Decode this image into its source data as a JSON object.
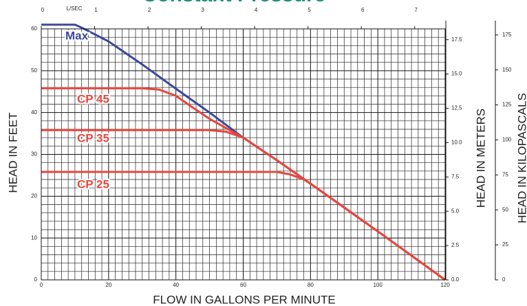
{
  "chart_data": {
    "type": "line",
    "title": "Constant Pressure",
    "xlabel": "FLOW IN GALLONS PER MINUTE",
    "ylabel": "HEAD IN FEET",
    "y2label": "HEAD IN METERS",
    "y3label": "HEAD IN KILOPASCALS",
    "x2label": "L/SEC",
    "xlim": [
      0,
      120
    ],
    "xticks": [
      0,
      20,
      40,
      60,
      80,
      100,
      120
    ],
    "ylim": [
      0,
      60
    ],
    "yticks": [
      0,
      10,
      20,
      30,
      40,
      50,
      60
    ],
    "x2lim": [
      0,
      7.571
    ],
    "x2ticks": [
      0,
      1,
      2,
      3,
      4,
      5,
      6,
      7
    ],
    "y2lim": [
      0,
      18.288
    ],
    "y2ticks": [
      {
        "value": 0,
        "label": "0.0"
      },
      2.5,
      {
        "value": 5,
        "label": "5.0"
      },
      7.5,
      {
        "value": 10,
        "label": "10.0"
      },
      12.5,
      {
        "value": 15,
        "label": "15.0"
      },
      17.5
    ],
    "y3lim": [
      0,
      179.3
    ],
    "y3ticks": [
      0,
      25,
      50,
      75,
      100,
      125,
      150,
      175
    ],
    "grid": true,
    "series": [
      {
        "name": "Max",
        "color": "#3a479b",
        "x": [
          0,
          10,
          12,
          20,
          30,
          40,
          50,
          60,
          70,
          80,
          90,
          100,
          110,
          120
        ],
        "values": [
          61,
          61,
          60.3,
          57,
          51.5,
          45.7,
          40,
          34,
          28.6,
          23,
          17.3,
          11.6,
          5.8,
          0
        ]
      },
      {
        "name": "CP 45",
        "color": "#e8453c",
        "x": [
          0,
          30,
          35,
          40,
          45,
          50,
          60,
          70,
          80,
          90,
          100,
          110,
          120
        ],
        "values": [
          45.8,
          45.8,
          45.5,
          44,
          41.2,
          38.5,
          34,
          28.6,
          23,
          17.3,
          11.6,
          5.8,
          0
        ]
      },
      {
        "name": "CP 35",
        "color": "#e8453c",
        "x": [
          0,
          50,
          55,
          60,
          70,
          80,
          90,
          100,
          110,
          120
        ],
        "values": [
          35.8,
          35.8,
          35.4,
          34,
          28.6,
          23,
          17.3,
          11.6,
          5.8,
          0
        ]
      },
      {
        "name": "CP 25",
        "color": "#e8453c",
        "x": [
          0,
          70,
          74,
          78,
          80,
          90,
          100,
          110,
          120
        ],
        "values": [
          25.8,
          25.8,
          25.2,
          24,
          23,
          17.3,
          11.6,
          5.8,
          0
        ]
      }
    ]
  }
}
